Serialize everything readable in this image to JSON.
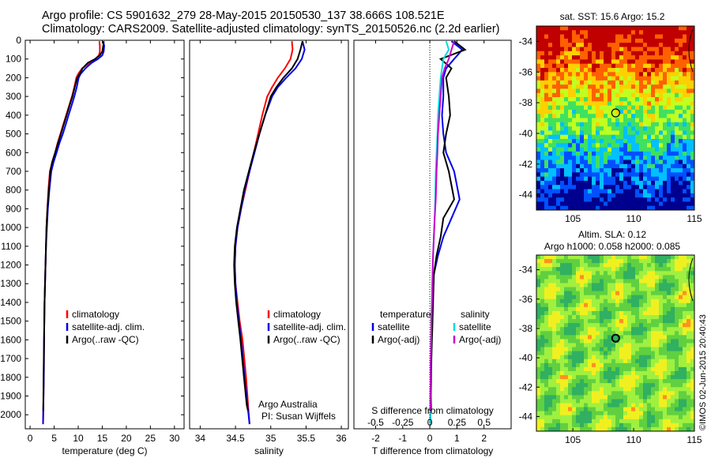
{
  "header": {
    "line1": "Argo profile: CS 5901632_279 28-May-2015 20150530_137 38.666S 108.521E",
    "line2": "Climatology: CARS2009. Satellite-adjusted climatology: synTS_20150526.nc (2.2d earlier)"
  },
  "chart_data": [
    {
      "type": "line",
      "panel": "temperature",
      "xlabel": "temperature (deg C)",
      "ylabel": "",
      "xlim": [
        -1,
        32
      ],
      "ylim": [
        2075,
        0
      ],
      "y_reversed": true,
      "xticks": [
        "0",
        "5",
        "10",
        "15",
        "20",
        "25",
        "30"
      ],
      "yticks": [
        "0",
        "100",
        "200",
        "300",
        "400",
        "500",
        "600",
        "700",
        "800",
        "900",
        "1000",
        "1100",
        "1200",
        "1300",
        "1400",
        "1500",
        "1600",
        "1700",
        "1800",
        "1900",
        "2000"
      ],
      "legend": [
        "climatology",
        "satellite-adj. clim.",
        "Argo(..raw -QC)"
      ],
      "legend_position": "lower-middle",
      "series": [
        {
          "name": "climatology",
          "color": "#ff0000",
          "x": [
            14.4,
            14.5,
            14.5,
            14.3,
            13.6,
            12.4,
            10.8,
            10.0,
            9.6,
            9.2,
            8.7,
            8.1,
            7.5,
            6.9,
            6.3,
            5.7,
            5.2,
            4.6,
            4.1,
            3.8,
            3.6,
            3.4,
            3.3,
            3.2,
            3.1,
            3.0,
            2.9,
            2.85,
            2.7
          ],
          "y": [
            5,
            30,
            60,
            80,
            100,
            120,
            150,
            180,
            200,
            250,
            300,
            350,
            400,
            450,
            500,
            550,
            600,
            650,
            700,
            800,
            900,
            1000,
            1100,
            1200,
            1300,
            1400,
            1600,
            1800,
            2050
          ]
        },
        {
          "name": "satellite-adj. clim.",
          "color": "#0000ee",
          "x": [
            15.2,
            15.4,
            15.3,
            15.0,
            14.1,
            12.8,
            11.5,
            10.5,
            10.1,
            9.7,
            9.2,
            8.6,
            8.0,
            7.4,
            6.8,
            6.1,
            5.5,
            4.9,
            4.4,
            4.0,
            3.7,
            3.5,
            3.3,
            3.2,
            3.1,
            3.0,
            2.9,
            2.85,
            2.7
          ],
          "y": [
            5,
            30,
            60,
            80,
            100,
            120,
            150,
            180,
            200,
            250,
            300,
            350,
            400,
            450,
            500,
            550,
            600,
            650,
            700,
            800,
            900,
            1000,
            1100,
            1200,
            1300,
            1400,
            1600,
            1800,
            2050
          ]
        },
        {
          "name": "Argo(..raw -QC)",
          "color": "#000000",
          "x": [
            15.3,
            15.2,
            15.0,
            14.5,
            13.5,
            12.0,
            10.9,
            10.3,
            9.8,
            9.3,
            8.8,
            8.2,
            7.6,
            7.0,
            6.4,
            5.8,
            5.2,
            4.6,
            4.2,
            3.9,
            3.6,
            3.4,
            3.3,
            3.2,
            3.1,
            3.0,
            2.9,
            2.8,
            2.75
          ],
          "y": [
            5,
            30,
            60,
            80,
            100,
            120,
            150,
            180,
            200,
            250,
            300,
            350,
            400,
            450,
            500,
            550,
            600,
            650,
            700,
            800,
            900,
            1000,
            1100,
            1200,
            1300,
            1400,
            1600,
            1800,
            1980
          ]
        }
      ]
    },
    {
      "type": "line",
      "panel": "salinity",
      "xlabel": "salinity",
      "xlim": [
        33.85,
        36.1
      ],
      "ylim": [
        2075,
        0
      ],
      "y_reversed": true,
      "xticks": [
        "34",
        "34.5",
        "35",
        "35.5",
        "36"
      ],
      "legend": [
        "climatology",
        "satellite-adj. clim.",
        "Argo(..raw -QC)"
      ],
      "legend_position": "lower-middle",
      "annotations": [
        "Argo Australia",
        "PI: Susan Wijffels"
      ],
      "series": [
        {
          "name": "climatology",
          "color": "#ff0000",
          "x": [
            35.3,
            35.31,
            35.28,
            35.2,
            35.1,
            35.02,
            34.95,
            34.88,
            34.82,
            34.76,
            34.7,
            34.64,
            34.58,
            34.53,
            34.5,
            34.49,
            34.5,
            34.53,
            34.56,
            34.6,
            34.65,
            34.68,
            34.7
          ],
          "y": [
            5,
            50,
            100,
            150,
            200,
            250,
            300,
            400,
            500,
            600,
            700,
            800,
            900,
            1000,
            1100,
            1200,
            1300,
            1400,
            1500,
            1600,
            1800,
            1950,
            2050
          ]
        },
        {
          "name": "satellite-adj. clim.",
          "color": "#0000ee",
          "x": [
            35.45,
            35.48,
            35.44,
            35.35,
            35.22,
            35.1,
            35.02,
            34.92,
            34.84,
            34.77,
            34.7,
            34.63,
            34.58,
            34.53,
            34.5,
            34.49,
            34.5,
            34.52,
            34.55,
            34.58,
            34.63,
            34.67,
            34.7
          ],
          "y": [
            5,
            50,
            100,
            150,
            200,
            250,
            300,
            400,
            500,
            600,
            700,
            800,
            900,
            1000,
            1100,
            1200,
            1300,
            1400,
            1500,
            1600,
            1800,
            1950,
            2050
          ]
        },
        {
          "name": "Argo(..raw -QC)",
          "color": "#000000",
          "x": [
            35.45,
            35.42,
            35.38,
            35.3,
            35.18,
            35.08,
            35.0,
            34.92,
            34.84,
            34.76,
            34.69,
            34.62,
            34.57,
            34.52,
            34.49,
            34.48,
            34.49,
            34.51,
            34.54,
            34.57,
            34.62,
            34.66,
            34.68
          ],
          "y": [
            5,
            50,
            100,
            150,
            200,
            250,
            300,
            400,
            500,
            600,
            700,
            800,
            900,
            1000,
            1100,
            1200,
            1300,
            1400,
            1500,
            1600,
            1800,
            1950,
            1980
          ]
        }
      ]
    },
    {
      "type": "line",
      "panel": "differences",
      "xlabel": "T difference from climatology",
      "xlabel_top": "S difference from climatology",
      "xlim": [
        -2.8,
        3.0
      ],
      "ylim": [
        2075,
        0
      ],
      "y_reversed": true,
      "xticks": [
        "-2",
        "-1",
        "0",
        "1",
        "2"
      ],
      "sticks": [
        "-0.5",
        "-0.25",
        "0",
        "0.25",
        "0.5"
      ],
      "legend": [
        "temperature",
        "satellite",
        "Argo(-adj)",
        "salinity",
        "satellite",
        "Argo(-adj)"
      ],
      "legend_position": "lower-middle",
      "series": [
        {
          "name": "temperature satellite",
          "color": "#0000ee",
          "x": [
            0.8,
            1.2,
            0.9,
            0.6,
            0.5,
            0.5,
            0.45,
            0.5,
            0.6,
            0.9,
            1.1,
            0.8,
            0.5,
            0.3,
            0.15,
            0.1,
            0.08,
            0.05,
            0.04,
            0.03,
            0.02,
            0.02
          ],
          "y": [
            5,
            50,
            100,
            150,
            200,
            300,
            400,
            500,
            600,
            700,
            850,
            950,
            1050,
            1150,
            1250,
            1400,
            1500,
            1600,
            1700,
            1800,
            1900,
            2050
          ]
        },
        {
          "name": "temperature Argo(-adj)",
          "color": "#000000",
          "x": [
            0.9,
            1.3,
            0.4,
            0.8,
            0.6,
            0.7,
            0.75,
            0.6,
            0.5,
            0.7,
            0.9,
            0.5,
            0.4,
            0.25,
            0.15,
            0.12,
            0.1,
            0.08,
            0.06,
            0.05,
            0.04,
            0.05
          ],
          "y": [
            5,
            50,
            100,
            150,
            200,
            300,
            400,
            500,
            600,
            700,
            850,
            950,
            1050,
            1150,
            1250,
            1400,
            1500,
            1600,
            1700,
            1800,
            1900,
            1980
          ]
        },
        {
          "name": "salinity satellite",
          "color": "#00dddd",
          "x": [
            0.6,
            0.7,
            0.5,
            0.45,
            0.4,
            0.35,
            0.3,
            0.28,
            0.25,
            0.22,
            0.2,
            0.18,
            0.15,
            0.12,
            0.1,
            0.08,
            0.06,
            0.05,
            0.04,
            0.03,
            0.02,
            0.02
          ],
          "y": [
            5,
            50,
            100,
            150,
            200,
            300,
            400,
            500,
            600,
            700,
            850,
            950,
            1050,
            1150,
            1250,
            1400,
            1500,
            1600,
            1700,
            1800,
            1900,
            2050
          ]
        },
        {
          "name": "salinity Argo(-adj)",
          "color": "#cc00cc",
          "x": [
            0.9,
            0.8,
            0.7,
            0.55,
            0.45,
            0.4,
            0.35,
            0.3,
            0.28,
            0.25,
            0.22,
            0.18,
            0.15,
            0.12,
            0.1,
            0.08,
            0.06,
            0.05,
            0.04,
            0.03,
            0.03,
            0.03
          ],
          "y": [
            5,
            50,
            100,
            150,
            200,
            300,
            400,
            500,
            600,
            700,
            850,
            950,
            1050,
            1150,
            1250,
            1400,
            1500,
            1600,
            1700,
            1800,
            1900,
            1980
          ]
        }
      ]
    },
    {
      "type": "heatmap",
      "panel": "sst-map",
      "title": "sat. SST: 15.6 Argo: 15.2",
      "xticks": [
        "105",
        "110",
        "115"
      ],
      "yticks": [
        "-34",
        "-36",
        "-38",
        "-40",
        "-42",
        "-44"
      ],
      "xlim": [
        102,
        115
      ],
      "ylim": [
        -45,
        -33
      ],
      "marker": {
        "lon": 108.521,
        "lat": -38.666
      },
      "colors": [
        "#00008f",
        "#0050ff",
        "#00c0ff",
        "#40e060",
        "#c0ff20",
        "#ffd000",
        "#ff6000",
        "#c00000"
      ]
    },
    {
      "type": "heatmap",
      "panel": "sla-map",
      "title_line1": "Altim. SLA: 0.12",
      "title_line2": "Argo h1000: 0.058 h2000: 0.085",
      "xticks": [
        "105",
        "110",
        "115"
      ],
      "yticks": [
        "-34",
        "-36",
        "-38",
        "-40",
        "-42",
        "-44"
      ],
      "xlim": [
        102,
        115
      ],
      "ylim": [
        -45,
        -33
      ],
      "marker": {
        "lon": 108.521,
        "lat": -38.666
      },
      "colors": [
        "#30b060",
        "#60d040",
        "#a0f040",
        "#f0f020",
        "#ff9020",
        "#e03010"
      ]
    }
  ],
  "footer": {
    "credit": "©IMOS 02-Jun-2015 20:40:43"
  }
}
